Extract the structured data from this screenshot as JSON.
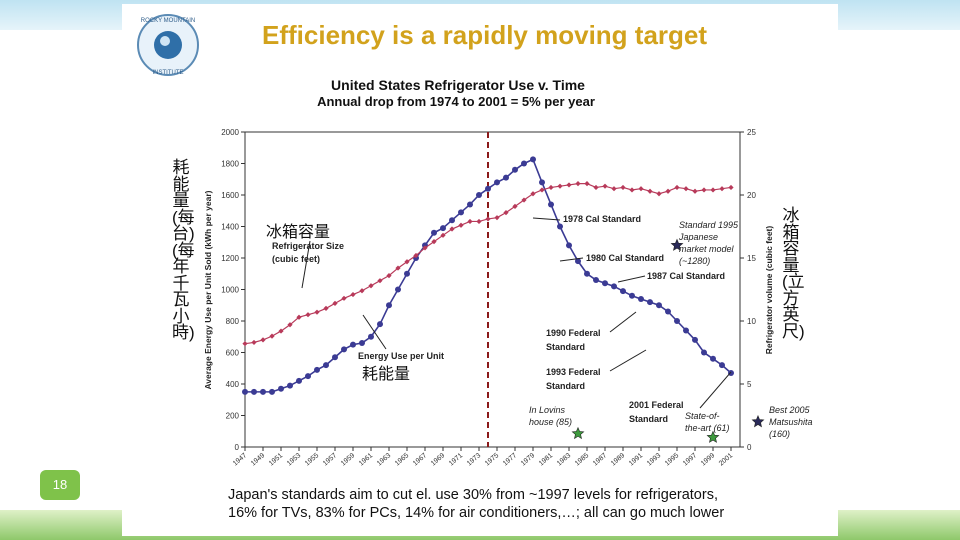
{
  "slide": {
    "title": "Efficiency is a rapidly moving target",
    "page_number": "18",
    "logo_text": [
      "ROCKY MOUNTAIN",
      "INSTITUTE"
    ],
    "cjk_left_vertical": "耗能量(每台)(每年千瓦小時)",
    "cjk_right_vertical": "冰箱容量(立方英尺)",
    "cjk_size_label": "冰箱容量",
    "cjk_energy_label": "耗能量",
    "footer": [
      "Japan's standards aim to cut el. use 30% from ~1997 levels for refrigerators,",
      "16% for TVs, 83% for PCs, 14% for air conditioners,…; all can go much lower"
    ],
    "colors": {
      "title": "#d2a21c",
      "energy": "#3b3b94",
      "size": "#b83a5a",
      "marker": "#8b1a1a",
      "star_green": "#3e9a3e",
      "star_dark": "#2a2a5a"
    }
  },
  "chart_data": {
    "type": "line",
    "title": "United States Refrigerator Use v. Time",
    "subtitle": "Annual drop from 1974 to 2001 = 5% per year",
    "ylabel": "Average Energy Use per Unit Sold (kWh per year)",
    "y2label": "Refrigerator volume (cubic feet)",
    "xlim": [
      1947,
      2002
    ],
    "ylim": [
      0,
      2000
    ],
    "y2lim": [
      0,
      25
    ],
    "yticks": [
      0,
      200,
      400,
      600,
      800,
      1000,
      1200,
      1400,
      1600,
      1800,
      2000
    ],
    "y2ticks": [
      0,
      5,
      10,
      15,
      20,
      25
    ],
    "y2tick_labels": [
      "0",
      "5",
      "10",
      "15",
      "20",
      "25"
    ],
    "xticks": [
      "1947",
      "1949",
      "1951",
      "1953",
      "1955",
      "1957",
      "1959",
      "1961",
      "1963",
      "1965",
      "1967",
      "1969",
      "1971",
      "1973",
      "1975",
      "1977",
      "1979",
      "1981",
      "1983",
      "1985",
      "1987",
      "1989",
      "1991",
      "1993",
      "1995",
      "1997",
      "1999",
      "2001"
    ],
    "marker_year": 1974,
    "series": [
      {
        "name": "Energy Use per Unit",
        "axis": "left",
        "x": [
          1947,
          1948,
          1949,
          1950,
          1951,
          1952,
          1953,
          1954,
          1955,
          1956,
          1957,
          1958,
          1959,
          1960,
          1961,
          1962,
          1963,
          1964,
          1965,
          1966,
          1967,
          1968,
          1969,
          1970,
          1971,
          1972,
          1973,
          1974,
          1975,
          1976,
          1977,
          1978,
          1979,
          1980,
          1981,
          1982,
          1983,
          1984,
          1985,
          1986,
          1987,
          1988,
          1989,
          1990,
          1991,
          1992,
          1993,
          1994,
          1995,
          1996,
          1997,
          1998,
          1999,
          2000,
          2001
        ],
        "y": [
          350,
          350,
          350,
          350,
          370,
          390,
          420,
          450,
          490,
          520,
          570,
          620,
          650,
          660,
          700,
          780,
          900,
          1000,
          1100,
          1200,
          1280,
          1360,
          1390,
          1440,
          1490,
          1540,
          1600,
          1640,
          1680,
          1710,
          1760,
          1800,
          1826,
          1680,
          1540,
          1400,
          1280,
          1180,
          1100,
          1060,
          1040,
          1020,
          990,
          960,
          940,
          920,
          900,
          860,
          800,
          740,
          680,
          600,
          560,
          520,
          470
        ]
      },
      {
        "name": "Refrigerator Size",
        "axis": "right",
        "x": [
          1947,
          1948,
          1949,
          1950,
          1951,
          1952,
          1953,
          1954,
          1955,
          1956,
          1957,
          1958,
          1959,
          1960,
          1961,
          1962,
          1963,
          1964,
          1965,
          1966,
          1967,
          1968,
          1969,
          1970,
          1971,
          1972,
          1973,
          1974,
          1975,
          1976,
          1977,
          1978,
          1979,
          1980,
          1981,
          1982,
          1983,
          1984,
          1985,
          1986,
          1987,
          1988,
          1989,
          1990,
          1991,
          1992,
          1993,
          1994,
          1995,
          1996,
          1997,
          1998,
          1999,
          2000,
          2001
        ],
        "y": [
          8.2,
          8.3,
          8.5,
          8.8,
          9.2,
          9.7,
          10.3,
          10.5,
          10.7,
          11.0,
          11.4,
          11.8,
          12.1,
          12.4,
          12.8,
          13.2,
          13.6,
          14.2,
          14.7,
          15.2,
          15.8,
          16.3,
          16.8,
          17.3,
          17.6,
          17.9,
          17.9,
          18.1,
          18.2,
          18.6,
          19.1,
          19.6,
          20.1,
          20.4,
          20.6,
          20.7,
          20.8,
          20.9,
          20.9,
          20.6,
          20.7,
          20.5,
          20.6,
          20.4,
          20.5,
          20.3,
          20.1,
          20.3,
          20.6,
          20.5,
          20.3,
          20.4,
          20.4,
          20.5,
          20.6
        ]
      }
    ],
    "labels": {
      "size": "Refrigerator Size (cubic feet)",
      "energy": "Energy Use per Unit",
      "std1978": "1978 Cal Standard",
      "std1980": "1980 Cal Standard",
      "std1987": "1987 Cal Standard",
      "std1990": "1990 Federal Standard",
      "std1993": "1993 Federal Standard",
      "std2001": "2001 Federal Standard",
      "japan": [
        "Standard 1995",
        "Japanese",
        "market model",
        "(~1280)"
      ],
      "lovins": [
        "In Lovins",
        "house (85)"
      ],
      "stateart": [
        "State-of-",
        "the-art (61)"
      ],
      "best2005": [
        "Best 2005",
        "Matsushita",
        "(160)"
      ]
    },
    "stars": [
      {
        "name": "Lovins house",
        "year": 1984,
        "value": 85
      },
      {
        "name": "State-of-the-art",
        "year": 1999,
        "value": 61
      },
      {
        "name": "Japanese market model",
        "year": 1995,
        "value": 1280
      },
      {
        "name": "Best 2005 Matsushita",
        "year": 2004,
        "value": 160
      }
    ]
  }
}
